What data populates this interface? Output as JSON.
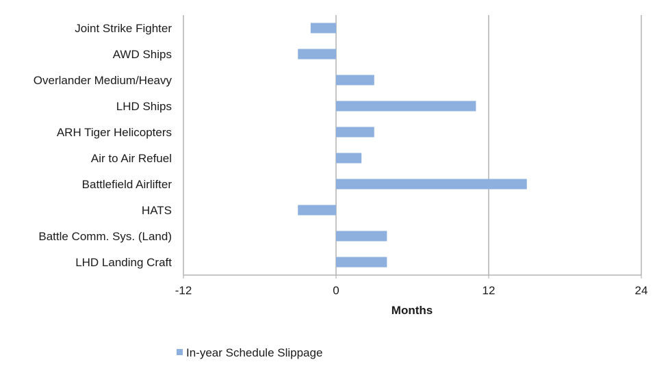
{
  "chart_data": {
    "type": "bar",
    "orientation": "horizontal",
    "categories": [
      "Joint Strike Fighter",
      "AWD Ships",
      "Overlander Medium/Heavy",
      "LHD Ships",
      "ARH Tiger Helicopters",
      "Air to Air Refuel",
      "Battlefield Airlifter",
      "HATS",
      "Battle Comm. Sys. (Land)",
      "LHD Landing Craft"
    ],
    "series": [
      {
        "name": "In-year Schedule Slippage",
        "values": [
          -2,
          -3,
          3,
          11,
          3,
          2,
          15,
          -3,
          4,
          4
        ]
      }
    ],
    "xlabel": "Months",
    "ylabel": "",
    "xlim": [
      -12,
      24
    ],
    "xticks": [
      "-12",
      "0",
      "12",
      "24"
    ],
    "grid": "vertical",
    "legend": "bottom-left",
    "colors": {
      "bar": "#8eb0df",
      "axis": "#a6a6a6",
      "grid": "#a6a6a6"
    }
  }
}
